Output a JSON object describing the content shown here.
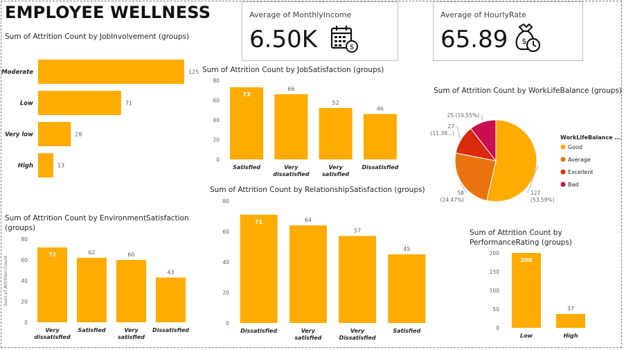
{
  "page": {
    "title": "EMPLOYEE WELLNESS"
  },
  "cards": [
    {
      "label": "Average of MonthlyIncome",
      "value": "6.50K",
      "icon": "calendar-money-icon"
    },
    {
      "label": "Average of HourlyRate",
      "value": "65.89",
      "icon": "money-bag-clock-icon"
    }
  ],
  "colors": {
    "bar": "#FFAB00",
    "good": "#FFAB00",
    "average": "#E8730F",
    "excellent": "#D92A0B",
    "bad": "#C80F4F",
    "axis_text": "#605E5C",
    "grid": "#E1E1E1"
  },
  "chart_data": [
    {
      "id": "job_involvement",
      "type": "bar",
      "orientation": "horizontal",
      "title": "Sum of Attrition Count by JobInvolvement (groups)",
      "categories": [
        "Moderate",
        "Low",
        "Very low",
        "High"
      ],
      "values": [
        125,
        71,
        28,
        13
      ],
      "data_labels": [
        "125",
        "71",
        "28",
        "13"
      ],
      "xlim": [
        0,
        125
      ]
    },
    {
      "id": "job_satisfaction",
      "type": "bar",
      "title": "Sum of Attrition Count by JobSatisfaction (groups)",
      "categories": [
        "Satisfied",
        "Very dissatisfied",
        "Very satisfied",
        "Dissatisfied"
      ],
      "values": [
        73,
        66,
        52,
        46
      ],
      "data_labels": [
        "73",
        "66",
        "52",
        "46"
      ],
      "ylim": [
        0,
        80
      ],
      "yticks": [
        "0",
        "20",
        "40",
        "60",
        "80"
      ],
      "grid": false
    },
    {
      "id": "environment_satisfaction",
      "type": "bar",
      "title": "Sum of Attrition Count by EnvironmentSatisfaction (groups)",
      "ylabel": "Sum of Attrition Count",
      "categories": [
        "Very dissatisfied",
        "Satisfied",
        "Very satisfied",
        "Dissatisfied"
      ],
      "values": [
        72,
        62,
        60,
        43
      ],
      "data_labels": [
        "72",
        "62",
        "60",
        "43"
      ],
      "ylim": [
        0,
        80
      ],
      "yticks": [
        "0",
        "20",
        "40",
        "60",
        "80"
      ],
      "grid": false
    },
    {
      "id": "relationship_satisfaction",
      "type": "bar",
      "title": "Sum of Attrition Count by RelationshipSatisfaction (groups)",
      "categories": [
        "Dissatisfied",
        "Very satisfied",
        "Very Dissatisfied",
        "Satisfied"
      ],
      "values": [
        71,
        64,
        57,
        45
      ],
      "data_labels": [
        "71",
        "64",
        "57",
        "45"
      ],
      "ylim": [
        0,
        80
      ],
      "yticks": [
        "0",
        "20",
        "40",
        "60",
        "80"
      ],
      "grid": false
    },
    {
      "id": "work_life_balance",
      "type": "pie",
      "title": "Sum of Attrition Count by WorkLifeBalance (groups)",
      "legend_title": "WorkLifeBalance ...",
      "legend_position": "right",
      "labels": [
        "Good",
        "Average",
        "Excellent",
        "Bad"
      ],
      "values": [
        127,
        58,
        27,
        25
      ],
      "percent_labels": [
        "(53.59%)",
        "(24.47%)",
        "(11.39...)",
        "25 (10.55%)"
      ],
      "value_labels": [
        "127",
        "58",
        "27",
        ""
      ]
    },
    {
      "id": "performance_rating",
      "type": "bar",
      "title": "Sum of Attrition Count by PerformanceRating (groups)",
      "categories": [
        "Low",
        "High"
      ],
      "values": [
        200,
        37
      ],
      "data_labels": [
        "200",
        "37"
      ],
      "ylim": [
        0,
        200
      ],
      "yticks": [
        "0",
        "50",
        "100",
        "150",
        "200"
      ],
      "grid": false
    }
  ]
}
